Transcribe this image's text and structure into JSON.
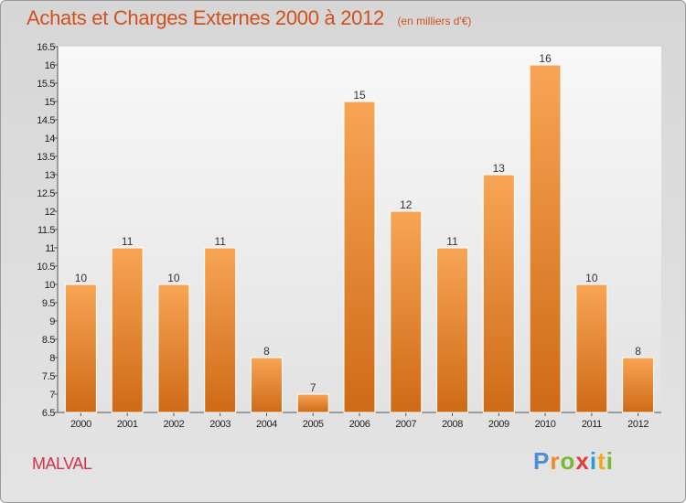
{
  "header": {
    "title": "Achats et Charges Externes 2000 à 2012",
    "subtitle": "(en milliers d'€)"
  },
  "footer": {
    "commune": "MALVAL",
    "brand": "Proxiti"
  },
  "colors": {
    "bar_top": "#f7a555",
    "bar_bottom": "#cf6a16",
    "title": "#d2501e",
    "commune": "#d2334a"
  },
  "chart_data": {
    "type": "bar",
    "title": "Achats et Charges Externes 2000 à 2012",
    "subtitle": "(en milliers d'€)",
    "categories": [
      "2000",
      "2001",
      "2002",
      "2003",
      "2004",
      "2005",
      "2006",
      "2007",
      "2008",
      "2009",
      "2010",
      "2011",
      "2012"
    ],
    "values": [
      10,
      11,
      10,
      11,
      8,
      7,
      15,
      12,
      11,
      13,
      16,
      10,
      8
    ],
    "ylim": [
      6.5,
      16.5
    ],
    "yticks": [
      "6.5",
      "7",
      "7.5",
      "8",
      "8.5",
      "9",
      "9.5",
      "10",
      "10.5",
      "11",
      "11.5",
      "12",
      "12.5",
      "13",
      "13.5",
      "14",
      "14.5",
      "15",
      "15.5",
      "16",
      "16.5"
    ],
    "grid": false,
    "legend": "none"
  }
}
